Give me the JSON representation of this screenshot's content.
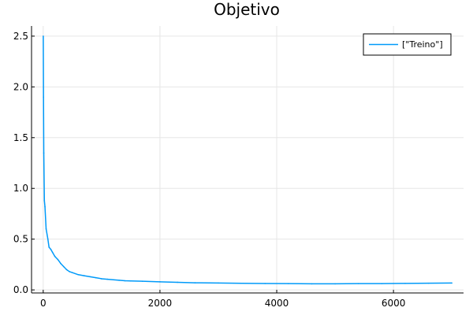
{
  "chart_data": {
    "type": "line",
    "title": "Objetivo",
    "xlabel": "",
    "ylabel": "",
    "xlim": [
      -200,
      7200
    ],
    "ylim": [
      -0.03,
      2.6
    ],
    "x_ticks": [
      0,
      2000,
      4000,
      6000
    ],
    "x_tick_labels": [
      "0",
      "2000",
      "4000",
      "6000"
    ],
    "y_ticks": [
      0.0,
      0.5,
      1.0,
      1.5,
      2.0,
      2.5
    ],
    "y_tick_labels": [
      "0.0",
      "0.5",
      "1.0",
      "1.5",
      "2.0",
      "2.5"
    ],
    "grid": true,
    "legend": {
      "position": "top-right"
    },
    "series": [
      {
        "name": "[\"Treino\"]",
        "color": "#009af9",
        "x": [
          1,
          5,
          10,
          20,
          30,
          50,
          80,
          100,
          130,
          160,
          200,
          250,
          300,
          350,
          400,
          450,
          500,
          600,
          700,
          800,
          900,
          1000,
          1100,
          1200,
          1300,
          1400,
          1500,
          1700,
          2000,
          2300,
          2600,
          3000,
          3400,
          3800,
          4200,
          4600,
          5000,
          5400,
          5800,
          6200,
          6600,
          7000
        ],
        "values": [
          2.5,
          1.9,
          1.35,
          0.88,
          0.82,
          0.6,
          0.5,
          0.42,
          0.4,
          0.37,
          0.33,
          0.3,
          0.26,
          0.23,
          0.2,
          0.18,
          0.17,
          0.15,
          0.14,
          0.13,
          0.12,
          0.11,
          0.105,
          0.1,
          0.095,
          0.09,
          0.088,
          0.085,
          0.08,
          0.075,
          0.07,
          0.068,
          0.065,
          0.063,
          0.062,
          0.06,
          0.06,
          0.062,
          0.062,
          0.064,
          0.066,
          0.068
        ]
      }
    ]
  }
}
